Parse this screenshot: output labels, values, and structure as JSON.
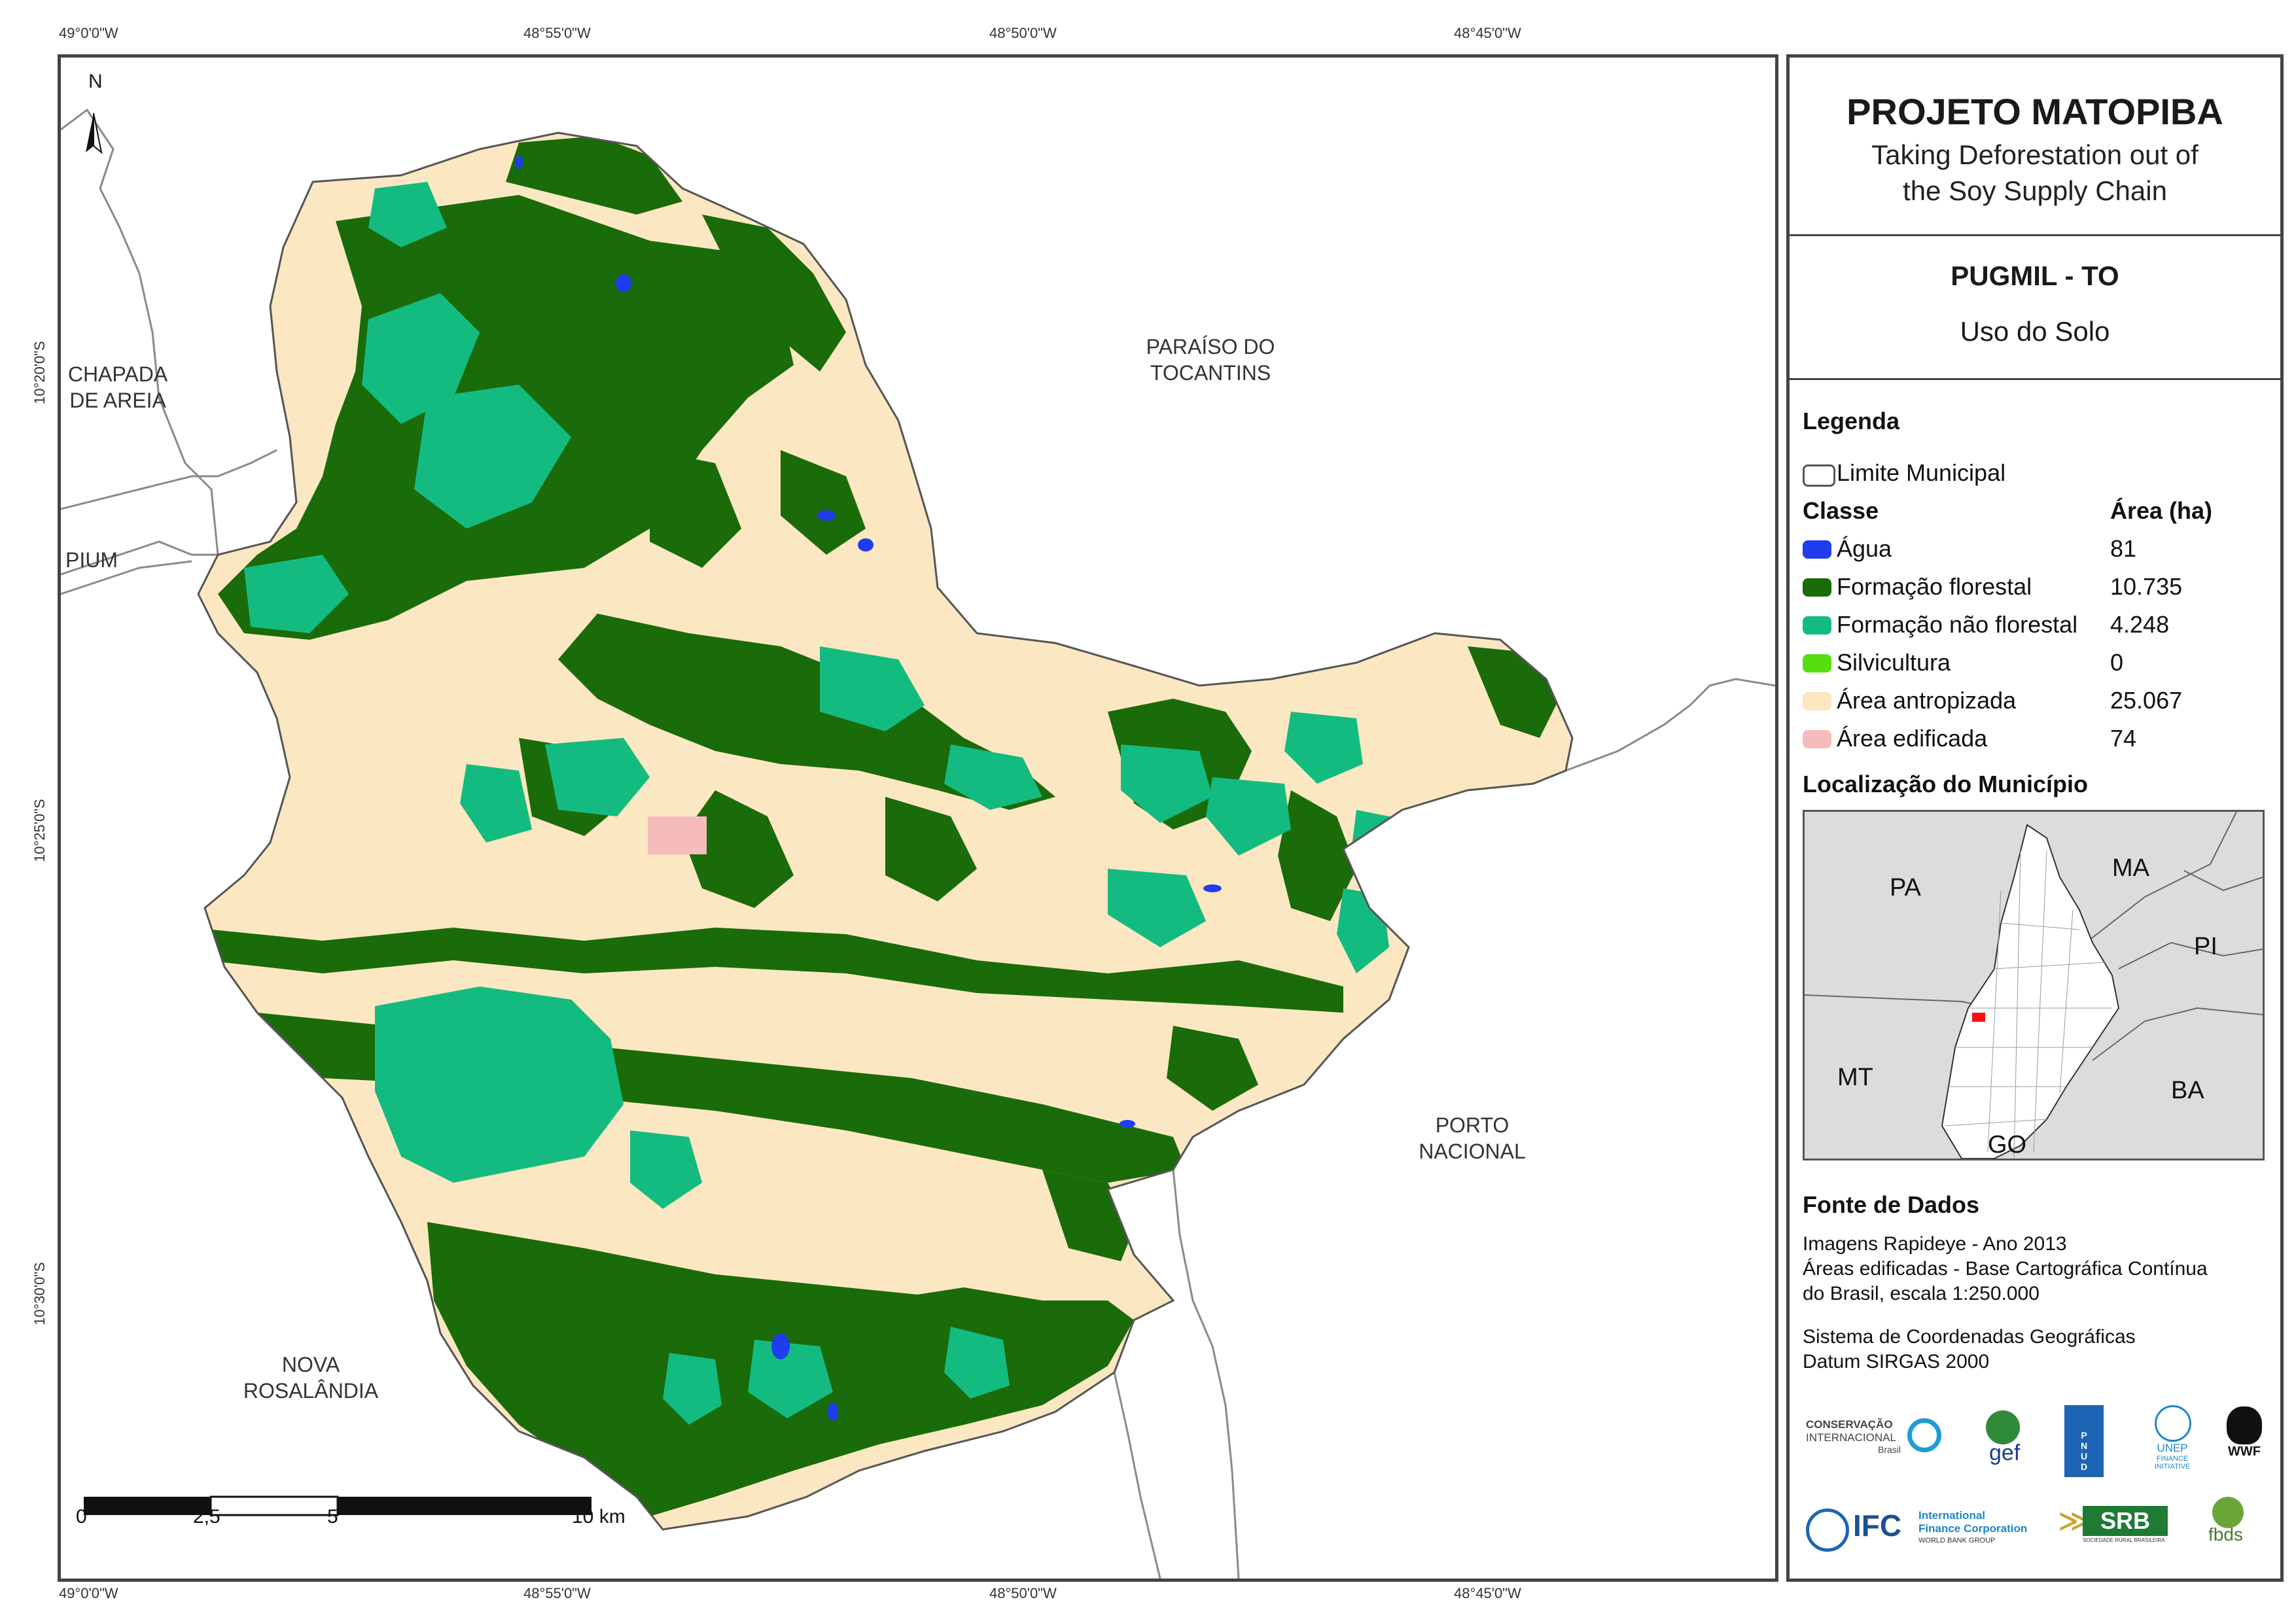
{
  "coords": {
    "top": [
      "49°0'0\"W",
      "48°55'0\"W",
      "48°50'0\"W",
      "48°45'0\"W"
    ],
    "bottom": [
      "49°0'0\"W",
      "48°55'0\"W",
      "48°50'0\"W",
      "48°45'0\"W"
    ],
    "left": [
      "10°20'0\"S",
      "10°25'0\"S",
      "10°30'0\"S"
    ]
  },
  "north_label": "N",
  "neighbors": {
    "chapada": [
      "CHAPADA",
      "DE AREIA"
    ],
    "pium": "PIUM",
    "paraiso": [
      "PARAÍSO DO",
      "TOCANTINS"
    ],
    "porto": [
      "PORTO",
      "NACIONAL"
    ],
    "nova": [
      "NOVA",
      "ROSALÂNDIA"
    ]
  },
  "scalebar": {
    "labels": [
      "0",
      "2,5",
      "5",
      "10 km"
    ]
  },
  "panel": {
    "title": "PROJETO MATOPIBA",
    "subtitle": [
      "Taking Deforestation out of",
      "the Soy Supply Chain"
    ],
    "municipio": "PUGMIL - TO",
    "tema": "Uso do Solo",
    "legenda_title": "Legenda",
    "limite": "Limite Municipal",
    "classe_header": "Classe",
    "area_header": "Área (ha)",
    "classes": [
      {
        "name": "Água",
        "area": "81",
        "color": "#1f3cf0"
      },
      {
        "name": "Formação florestal",
        "area": "10.735",
        "color": "#1a6b0a"
      },
      {
        "name": "Formação não florestal",
        "area": "4.248",
        "color": "#14bb80"
      },
      {
        "name": "Silvicultura",
        "area": "0",
        "color": "#55dd10"
      },
      {
        "name": "Área antropizada",
        "area": "25.067",
        "color": "#fbe7c1"
      },
      {
        "name": "Área edificada",
        "area": "74",
        "color": "#f6bcbc"
      }
    ],
    "localizacao_title": "Localização do Município",
    "loc_labels": {
      "pa": "PA",
      "ma": "MA",
      "pi": "PI",
      "mt": "MT",
      "ba": "BA",
      "go": "GO"
    },
    "fonte_title": "Fonte de Dados",
    "fonte_lines": [
      "Imagens Rapideye - Ano 2013",
      "Áreas edificadas - Base Cartográfica Contínua",
      "do Brasil, escala 1:250.000"
    ],
    "sistema_lines": [
      "Sistema de Coordenadas Geográficas",
      "Datum SIRGAS 2000"
    ]
  },
  "logos": {
    "ci": [
      "CONSERVAÇÃO",
      "INTERNACIONAL",
      "Brasil"
    ],
    "gef": "gef",
    "pnud": "PNUD",
    "unep": [
      "UNEP",
      "FINANCE",
      "INITIATIVE"
    ],
    "wwf": "WWF",
    "ifc": "IFC",
    "ifc_text": [
      "International",
      "Finance Corporation",
      "WORLD BANK GROUP"
    ],
    "srb": "SRB",
    "srb_sub": "SOCIEDADE RURAL BRASILEIRA",
    "fbds": "fbds"
  }
}
